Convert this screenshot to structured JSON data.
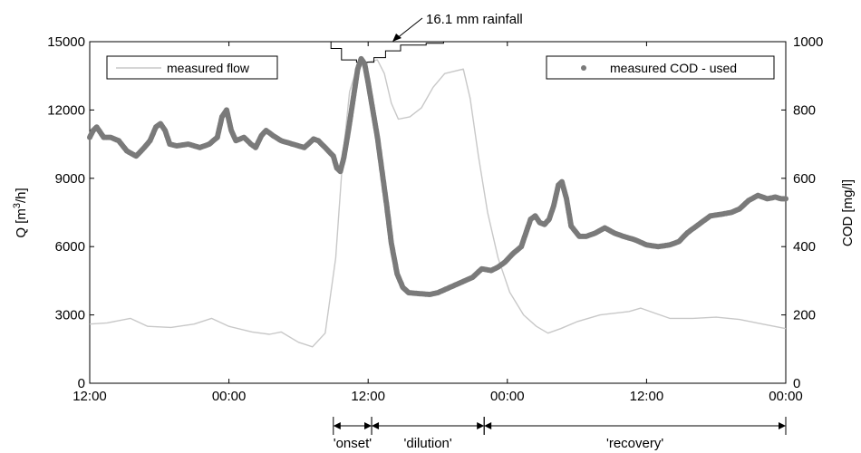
{
  "chart_data": {
    "type": "line",
    "title": "",
    "annotation": "16.1 mm rainfall",
    "x_ticks": [
      "12:00",
      "00:00",
      "12:00",
      "00:00",
      "12:00",
      "00:00"
    ],
    "x_range_hours": [
      0,
      60
    ],
    "y_left": {
      "label": "Q [m³/h]",
      "label_prefix": "Q [m",
      "label_sup": "3",
      "label_suffix": "/h]",
      "range": [
        0,
        15000
      ],
      "ticks": [
        "0",
        "3000",
        "6000",
        "9000",
        "12000",
        "15000"
      ]
    },
    "y_right": {
      "label": "COD [mg/l]",
      "range": [
        0,
        1000
      ],
      "ticks": [
        "0",
        "200",
        "400",
        "600",
        "800",
        "1000"
      ]
    },
    "legend": {
      "flow": "measured flow",
      "cod": "measured COD - used"
    },
    "colors": {
      "flow": "#c8c8c8",
      "cod": "#7a7a7a",
      "axis": "#000000"
    },
    "phases": [
      {
        "label": "'onset'",
        "start_h": 21.0,
        "end_h": 24.3
      },
      {
        "label": "'dilution'",
        "start_h": 24.3,
        "end_h": 34.0
      },
      {
        "label": "'recovery'",
        "start_h": 34.0,
        "end_h": 60.0
      }
    ],
    "series": [
      {
        "name": "measured flow",
        "axis": "left",
        "points": [
          [
            0,
            2600
          ],
          [
            1.5,
            2650
          ],
          [
            3.5,
            2850
          ],
          [
            5,
            2500
          ],
          [
            7,
            2450
          ],
          [
            9,
            2600
          ],
          [
            10.5,
            2850
          ],
          [
            12,
            2500
          ],
          [
            14,
            2250
          ],
          [
            15.5,
            2150
          ],
          [
            16.5,
            2250
          ],
          [
            18,
            1800
          ],
          [
            19.2,
            1600
          ],
          [
            20.3,
            2200
          ],
          [
            21.2,
            5500
          ],
          [
            21.8,
            9800
          ],
          [
            22.4,
            12800
          ],
          [
            23.0,
            13800
          ],
          [
            24.0,
            14100
          ],
          [
            24.8,
            14200
          ],
          [
            25.4,
            13600
          ],
          [
            26.0,
            12300
          ],
          [
            26.6,
            11600
          ],
          [
            27.6,
            11700
          ],
          [
            28.6,
            12100
          ],
          [
            29.6,
            13000
          ],
          [
            30.6,
            13600
          ],
          [
            32.2,
            13800
          ],
          [
            32.8,
            12500
          ],
          [
            33.5,
            10000
          ],
          [
            34.3,
            7500
          ],
          [
            35.2,
            5500
          ],
          [
            36.2,
            4000
          ],
          [
            37.4,
            3000
          ],
          [
            38.5,
            2500
          ],
          [
            39.5,
            2200
          ],
          [
            40.6,
            2400
          ],
          [
            42,
            2700
          ],
          [
            44,
            3000
          ],
          [
            46.5,
            3150
          ],
          [
            47.5,
            3300
          ],
          [
            48.6,
            3100
          ],
          [
            50,
            2850
          ],
          [
            52,
            2850
          ],
          [
            54,
            2900
          ],
          [
            56,
            2800
          ],
          [
            58,
            2600
          ],
          [
            60,
            2400
          ]
        ]
      },
      {
        "name": "measured COD - used",
        "axis": "right",
        "points": [
          [
            0,
            720
          ],
          [
            0.3,
            740
          ],
          [
            0.6,
            750
          ],
          [
            0.9,
            735
          ],
          [
            1.2,
            720
          ],
          [
            1.8,
            720
          ],
          [
            2.5,
            710
          ],
          [
            3.2,
            680
          ],
          [
            4.0,
            665
          ],
          [
            4.7,
            690
          ],
          [
            5.2,
            710
          ],
          [
            5.7,
            750
          ],
          [
            6.1,
            760
          ],
          [
            6.5,
            740
          ],
          [
            6.9,
            700
          ],
          [
            7.5,
            695
          ],
          [
            8.5,
            700
          ],
          [
            9.5,
            690
          ],
          [
            10.3,
            700
          ],
          [
            11.0,
            720
          ],
          [
            11.4,
            780
          ],
          [
            11.8,
            800
          ],
          [
            12.2,
            740
          ],
          [
            12.6,
            710
          ],
          [
            13.3,
            720
          ],
          [
            13.9,
            700
          ],
          [
            14.3,
            690
          ],
          [
            14.8,
            725
          ],
          [
            15.2,
            740
          ],
          [
            15.8,
            725
          ],
          [
            16.5,
            710
          ],
          [
            17.5,
            700
          ],
          [
            18.5,
            690
          ],
          [
            19.3,
            715
          ],
          [
            19.7,
            710
          ],
          [
            20.3,
            690
          ],
          [
            21.0,
            665
          ],
          [
            21.3,
            630
          ],
          [
            21.6,
            620
          ],
          [
            21.9,
            660
          ],
          [
            22.3,
            740
          ],
          [
            22.7,
            830
          ],
          [
            23.1,
            920
          ],
          [
            23.4,
            950
          ],
          [
            23.7,
            935
          ],
          [
            24.0,
            880
          ],
          [
            24.4,
            800
          ],
          [
            24.8,
            720
          ],
          [
            25.2,
            620
          ],
          [
            25.6,
            520
          ],
          [
            26.0,
            410
          ],
          [
            26.5,
            320
          ],
          [
            27.0,
            280
          ],
          [
            27.5,
            265
          ],
          [
            28.5,
            262
          ],
          [
            29.3,
            260
          ],
          [
            30.0,
            265
          ],
          [
            31.0,
            280
          ],
          [
            32.0,
            295
          ],
          [
            33.0,
            310
          ],
          [
            33.8,
            335
          ],
          [
            34.6,
            330
          ],
          [
            35.2,
            340
          ],
          [
            35.8,
            355
          ],
          [
            36.5,
            380
          ],
          [
            37.2,
            400
          ],
          [
            37.6,
            440
          ],
          [
            38.0,
            480
          ],
          [
            38.4,
            490
          ],
          [
            38.8,
            470
          ],
          [
            39.2,
            465
          ],
          [
            39.6,
            480
          ],
          [
            40.0,
            520
          ],
          [
            40.4,
            580
          ],
          [
            40.7,
            590
          ],
          [
            41.1,
            540
          ],
          [
            41.5,
            460
          ],
          [
            42.2,
            430
          ],
          [
            42.8,
            430
          ],
          [
            43.6,
            440
          ],
          [
            44.4,
            455
          ],
          [
            45.2,
            440
          ],
          [
            46.0,
            430
          ],
          [
            47.0,
            420
          ],
          [
            48.0,
            405
          ],
          [
            49.0,
            400
          ],
          [
            50.0,
            405
          ],
          [
            50.8,
            415
          ],
          [
            51.5,
            440
          ],
          [
            52.5,
            465
          ],
          [
            53.5,
            490
          ],
          [
            54.5,
            495
          ],
          [
            55.3,
            500
          ],
          [
            56.0,
            510
          ],
          [
            56.8,
            535
          ],
          [
            57.6,
            550
          ],
          [
            58.4,
            540
          ],
          [
            59.1,
            545
          ],
          [
            59.6,
            540
          ],
          [
            60.0,
            540
          ]
        ]
      },
      {
        "name": "rainfall",
        "axis": "left",
        "points": [
          [
            19.7,
            15000
          ],
          [
            20.8,
            15000
          ],
          [
            20.8,
            14700
          ],
          [
            21.7,
            14700
          ],
          [
            21.7,
            14200
          ],
          [
            23.0,
            14200
          ],
          [
            23.0,
            14100
          ],
          [
            24.5,
            14100
          ],
          [
            24.5,
            14300
          ],
          [
            25.5,
            14300
          ],
          [
            25.5,
            14600
          ],
          [
            26.8,
            14600
          ],
          [
            26.8,
            14850
          ],
          [
            29.0,
            14850
          ],
          [
            29.0,
            14930
          ],
          [
            30.5,
            14930
          ],
          [
            30.5,
            15000
          ]
        ]
      }
    ]
  }
}
